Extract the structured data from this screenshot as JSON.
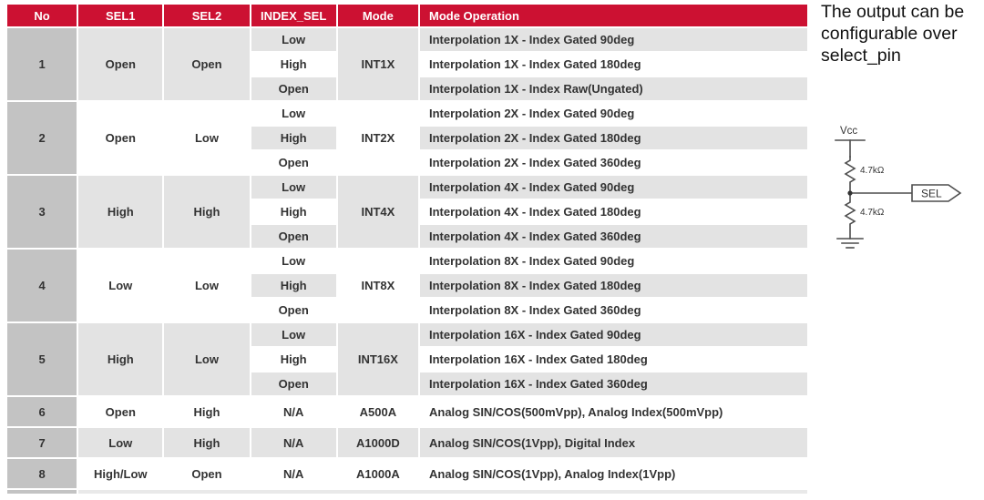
{
  "table": {
    "headers": [
      "No",
      "SEL1",
      "SEL2",
      "INDEX_SEL",
      "Mode",
      "Mode Operation"
    ],
    "groups": [
      {
        "no": "1",
        "sel1": "Open",
        "sel2": "Open",
        "mode": "INT1X",
        "rows": [
          {
            "index_sel": "Low",
            "operation": "Interpolation 1X - Index Gated 90deg"
          },
          {
            "index_sel": "High",
            "operation": "Interpolation 1X - Index Gated 180deg"
          },
          {
            "index_sel": "Open",
            "operation": "Interpolation 1X - Index Raw(Ungated)"
          }
        ]
      },
      {
        "no": "2",
        "sel1": "Open",
        "sel2": "Low",
        "mode": "INT2X",
        "rows": [
          {
            "index_sel": "Low",
            "operation": "Interpolation 2X - Index Gated 90deg"
          },
          {
            "index_sel": "High",
            "operation": "Interpolation 2X - Index Gated 180deg"
          },
          {
            "index_sel": "Open",
            "operation": "Interpolation 2X - Index Gated 360deg"
          }
        ]
      },
      {
        "no": "3",
        "sel1": "High",
        "sel2": "High",
        "mode": "INT4X",
        "rows": [
          {
            "index_sel": "Low",
            "operation": "Interpolation 4X - Index Gated 90deg"
          },
          {
            "index_sel": "High",
            "operation": "Interpolation 4X - Index Gated 180deg"
          },
          {
            "index_sel": "Open",
            "operation": "Interpolation 4X - Index Gated 360deg"
          }
        ]
      },
      {
        "no": "4",
        "sel1": "Low",
        "sel2": "Low",
        "mode": "INT8X",
        "rows": [
          {
            "index_sel": "Low",
            "operation": "Interpolation 8X - Index Gated 90deg"
          },
          {
            "index_sel": "High",
            "operation": "Interpolation 8X - Index Gated 180deg"
          },
          {
            "index_sel": "Open",
            "operation": "Interpolation 8X - Index Gated 360deg"
          }
        ]
      },
      {
        "no": "5",
        "sel1": "High",
        "sel2": "Low",
        "mode": "INT16X",
        "rows": [
          {
            "index_sel": "Low",
            "operation": "Interpolation 16X - Index Gated 90deg"
          },
          {
            "index_sel": "High",
            "operation": "Interpolation 16X - Index Gated 180deg"
          },
          {
            "index_sel": "Open",
            "operation": "Interpolation 16X - Index Gated 360deg"
          }
        ]
      }
    ],
    "single_rows": [
      {
        "no": "6",
        "sel1": "Open",
        "sel2": "High",
        "index_sel": "N/A",
        "mode": "A500A",
        "operation": "Analog SIN/COS(500mVpp), Analog Index(500mVpp)"
      },
      {
        "no": "7",
        "sel1": "Low",
        "sel2": "High",
        "index_sel": "N/A",
        "mode": "A1000D",
        "operation": "Analog SIN/COS(1Vpp), Digital Index"
      },
      {
        "no": "8",
        "sel1": "High/Low",
        "sel2": "Open",
        "index_sel": "N/A",
        "mode": "A1000A",
        "operation": "Analog SIN/COS(1Vpp), Analog Index(1Vpp)"
      }
    ]
  },
  "side_note": {
    "text": "The output can be configurable over select_pin"
  },
  "circuit": {
    "vcc_label": "Vcc",
    "r1_label": "4.7kΩ",
    "r2_label": "4.7kΩ",
    "sel_label": "SEL"
  },
  "colors": {
    "header_red": "#CC1132",
    "no_column_gray": "#C3C3C3",
    "stripe_gray": "#E3E3E3",
    "row_white": "#FFFFFF",
    "text": "#333333"
  }
}
